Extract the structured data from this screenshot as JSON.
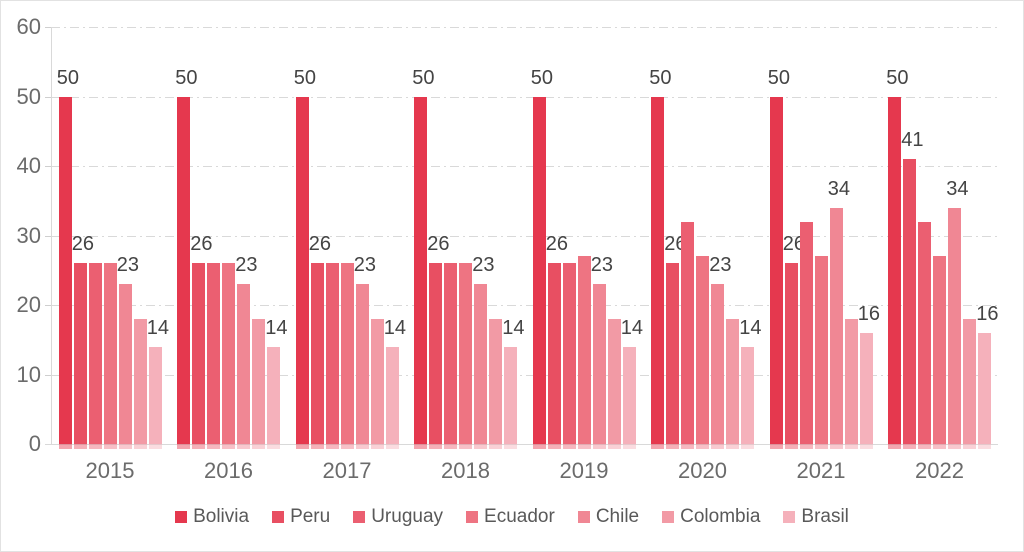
{
  "chart_data": {
    "type": "bar",
    "title": "",
    "xlabel": "",
    "ylabel": "",
    "categories": [
      "2015",
      "2016",
      "2017",
      "2018",
      "2019",
      "2020",
      "2021",
      "2022"
    ],
    "series": [
      {
        "name": "Bolivia",
        "color": "#e5384e",
        "values": [
          50,
          50,
          50,
          50,
          50,
          50,
          50,
          50
        ]
      },
      {
        "name": "Peru",
        "color": "#e84f62",
        "values": [
          26,
          26,
          26,
          26,
          26,
          26,
          26,
          41
        ]
      },
      {
        "name": "Uruguay",
        "color": "#eb5f71",
        "values": [
          26,
          26,
          26,
          26,
          26,
          32,
          32,
          32
        ]
      },
      {
        "name": "Ecuador",
        "color": "#ee7482",
        "values": [
          26,
          26,
          26,
          26,
          27,
          27,
          27,
          27
        ]
      },
      {
        "name": "Chile",
        "color": "#f08794",
        "values": [
          23,
          23,
          23,
          23,
          23,
          23,
          34,
          34
        ]
      },
      {
        "name": "Colombia",
        "color": "#f29aa5",
        "values": [
          18,
          18,
          18,
          18,
          18,
          18,
          18,
          18
        ]
      },
      {
        "name": "Brasil",
        "color": "#f5b1bb",
        "values": [
          14,
          14,
          14,
          14,
          14,
          14,
          16,
          16
        ]
      }
    ],
    "labeled_series": [
      "Bolivia",
      "Peru",
      "Chile",
      "Brasil"
    ],
    "y_axis": {
      "min": 0,
      "max": 60,
      "step": 10,
      "tick_labels": [
        "0",
        "10",
        "20",
        "30",
        "40",
        "50",
        "60"
      ]
    },
    "grid": true,
    "legend_position": "bottom"
  },
  "colors": {
    "background": "#ffffff",
    "axis_line": "#d9d9d9",
    "grid_line": "#d9d9d9",
    "axis_label_text": "#6b6b6b",
    "data_label_text": "#444444",
    "legend_text": "#595959"
  }
}
